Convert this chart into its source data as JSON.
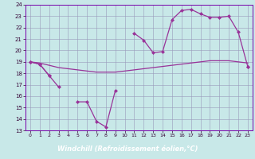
{
  "hours": [
    0,
    1,
    2,
    3,
    4,
    5,
    6,
    7,
    8,
    9,
    10,
    11,
    12,
    13,
    14,
    15,
    16,
    17,
    18,
    19,
    20,
    21,
    22,
    23
  ],
  "smooth_line": [
    19.0,
    18.9,
    18.7,
    18.5,
    18.4,
    18.3,
    18.2,
    18.1,
    18.1,
    18.1,
    18.2,
    18.3,
    18.4,
    18.5,
    18.6,
    18.7,
    18.8,
    18.9,
    19.0,
    19.1,
    19.1,
    19.1,
    19.0,
    18.9
  ],
  "upper_line": [
    19.0,
    18.8,
    17.8,
    null,
    null,
    null,
    null,
    null,
    null,
    null,
    null,
    21.5,
    20.9,
    19.8,
    19.9,
    22.7,
    23.5,
    23.6,
    23.2,
    22.9,
    22.9,
    23.0,
    21.6,
    18.6
  ],
  "lower_line": [
    19.0,
    18.8,
    17.8,
    16.8,
    null,
    15.5,
    15.5,
    13.8,
    13.3,
    16.5,
    null,
    null,
    null,
    null,
    null,
    null,
    null,
    null,
    null,
    null,
    null,
    null,
    null,
    18.6
  ],
  "bg_color": "#c8e8e8",
  "grid_color": "#9999bb",
  "line_color": "#993399",
  "bar_color": "#7700aa",
  "ylim": [
    13,
    24
  ],
  "yticks": [
    13,
    14,
    15,
    16,
    17,
    18,
    19,
    20,
    21,
    22,
    23,
    24
  ],
  "xlabel": "Windchill (Refroidissement éolien,°C)"
}
